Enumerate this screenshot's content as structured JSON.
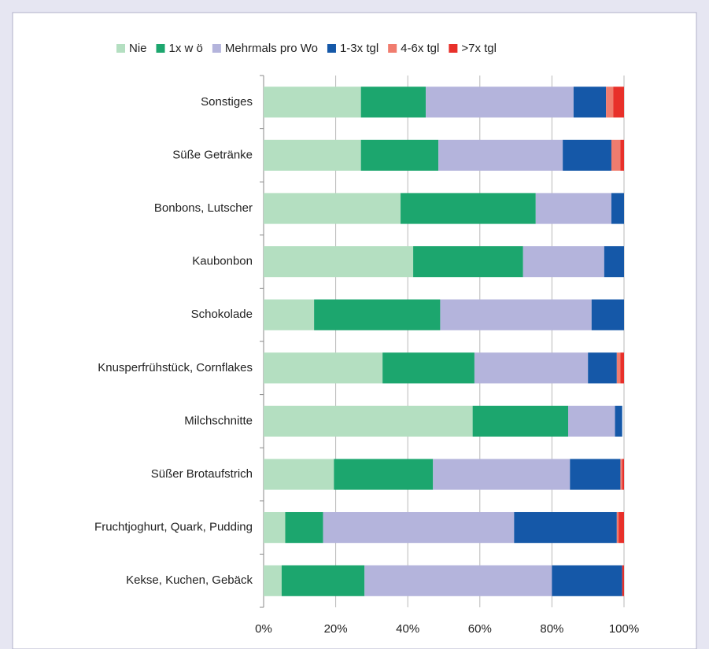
{
  "chart_data": {
    "type": "stacked_barh",
    "categories": [
      "Sonstiges",
      "Süße Getränke",
      "Bonbons, Lutscher",
      "Kaubonbon",
      "Schokolade",
      "Knusperfrühstück, Cornflakes",
      "Milchschnitte",
      "Süßer Brotaufstrich",
      "Fruchtjoghurt, Quark, Pudding",
      "Kekse, Kuchen, Gebäck"
    ],
    "series": [
      {
        "name": "Nie",
        "color": "#b4dfc1",
        "values": [
          27,
          27,
          38,
          41.5,
          14,
          33,
          58,
          19.5,
          6,
          5
        ]
      },
      {
        "name": "1x w ö",
        "color": "#1ca66e",
        "values": [
          18,
          21.5,
          37.5,
          30.5,
          35,
          25.5,
          26.5,
          27.5,
          10.5,
          23
        ]
      },
      {
        "name": "Mehrmals pro Wo",
        "color": "#b4b4dc",
        "values": [
          41,
          34.5,
          21,
          22.5,
          42,
          31.5,
          13,
          38,
          53,
          52
        ]
      },
      {
        "name": "1-3x tgl",
        "color": "#1558a8",
        "values": [
          9,
          13.5,
          3.5,
          5.5,
          9,
          8,
          2,
          14,
          28.5,
          19.5
        ]
      },
      {
        "name": "4-6x tgl",
        "color": "#f07c6e",
        "values": [
          2,
          2.5,
          0,
          0,
          0,
          1,
          0,
          0.5,
          0.5,
          0
        ]
      },
      {
        "name": ">7x tgl",
        "color": "#e8302a",
        "values": [
          3,
          1,
          0,
          0,
          0,
          1,
          0,
          0.5,
          1.5,
          0.5
        ]
      }
    ],
    "xlim": [
      0,
      100
    ],
    "xticks": [
      {
        "value": 0,
        "label": "0%"
      },
      {
        "value": 20,
        "label": "20%"
      },
      {
        "value": 40,
        "label": "40%"
      },
      {
        "value": 60,
        "label": "60%"
      },
      {
        "value": 80,
        "label": "80%"
      },
      {
        "value": 100,
        "label": "100%"
      }
    ],
    "grid": true,
    "legend": "top"
  }
}
